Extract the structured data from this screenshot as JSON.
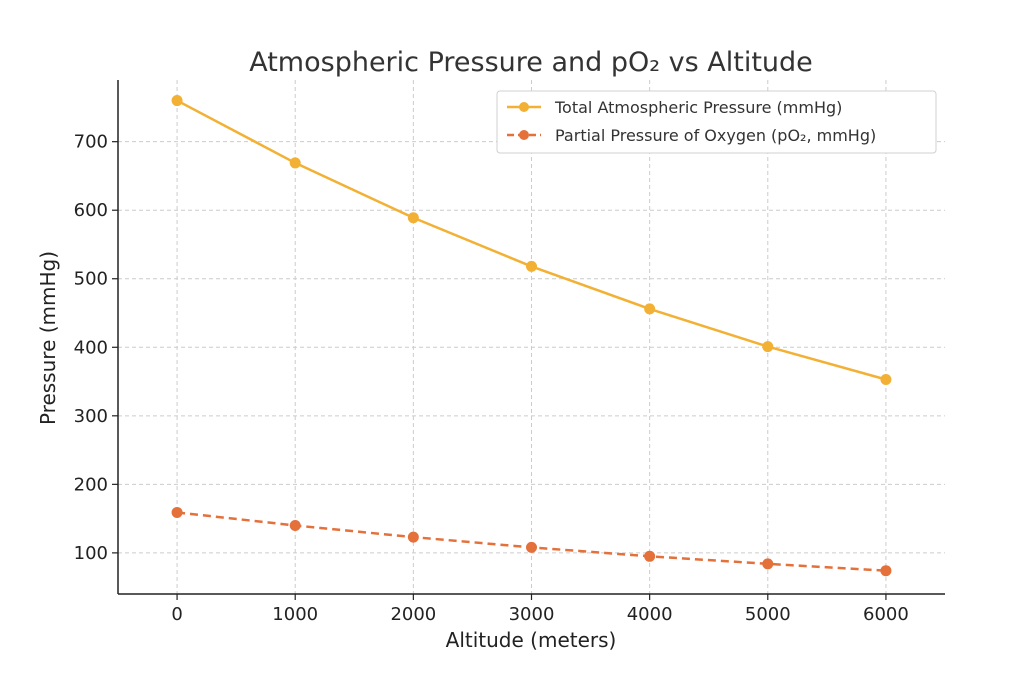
{
  "chart_data": {
    "type": "line",
    "title": "Atmospheric Pressure and pO₂ vs Altitude",
    "xlabel": "Altitude (meters)",
    "ylabel": "Pressure (mmHg)",
    "x": [
      0,
      1000,
      2000,
      3000,
      4000,
      5000,
      6000
    ],
    "x_ticks": [
      "0",
      "1000",
      "2000",
      "3000",
      "4000",
      "5000",
      "6000"
    ],
    "y_ticks": [
      "100",
      "200",
      "300",
      "400",
      "500",
      "600",
      "700"
    ],
    "xlim": [
      -500,
      6500
    ],
    "ylim": [
      40,
      790
    ],
    "grid": true,
    "legend_position": "top-right",
    "series": [
      {
        "name": "Total Atmospheric Pressure (mmHg)",
        "values": [
          760,
          669,
          589,
          518,
          456,
          401,
          353
        ],
        "color": "#f2b134",
        "line_style": "solid",
        "marker": "circle"
      },
      {
        "name": "Partial Pressure of Oxygen (pO₂, mmHg)",
        "values": [
          159,
          140,
          123,
          108,
          95,
          84,
          74
        ],
        "color": "#e4703a",
        "line_style": "dashed",
        "marker": "circle"
      }
    ]
  }
}
